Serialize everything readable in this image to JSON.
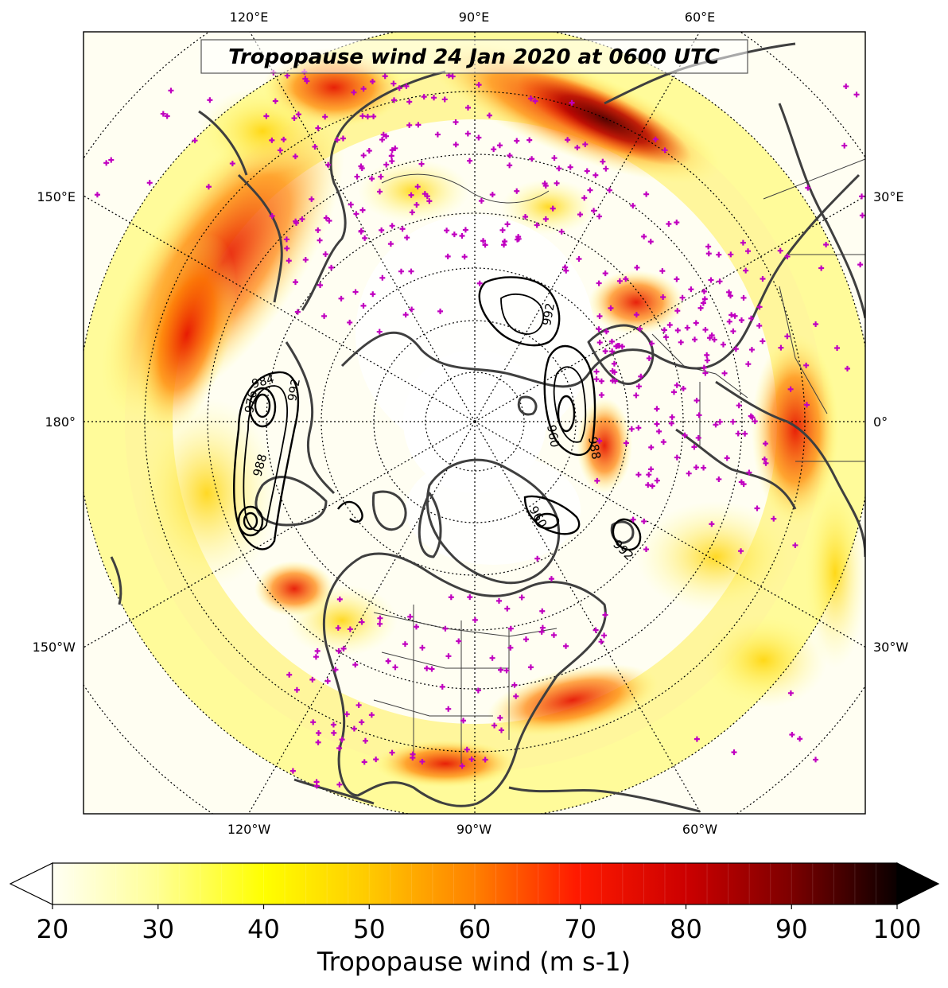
{
  "map": {
    "title": "Tropopause wind 24 Jan 2020 at 0600 UTC",
    "projection": "north-polar-stereographic",
    "top_longitude_labels": [
      "120°E",
      "90°E",
      "60°E"
    ],
    "bottom_longitude_labels": [
      "120°W",
      "90°W",
      "60°W"
    ],
    "left_longitude_labels": [
      "150°E",
      "180°",
      "150°W"
    ],
    "right_longitude_labels": [
      "30°E",
      "0°",
      "30°W"
    ],
    "contour_labels": [
      "984",
      "976",
      "988",
      "992",
      "960",
      "988",
      "992",
      "960",
      "992"
    ],
    "colors": {
      "coastline": "#3f3f3f",
      "station_marker": "#c000c0",
      "contour": "#000000"
    }
  },
  "colorbar": {
    "label": "Tropopause wind (m s-1)",
    "ticks": [
      "20",
      "30",
      "40",
      "50",
      "60",
      "70",
      "80",
      "90",
      "100"
    ],
    "min": 20,
    "max": 100,
    "extend": "both",
    "colormap": "hot_r"
  }
}
